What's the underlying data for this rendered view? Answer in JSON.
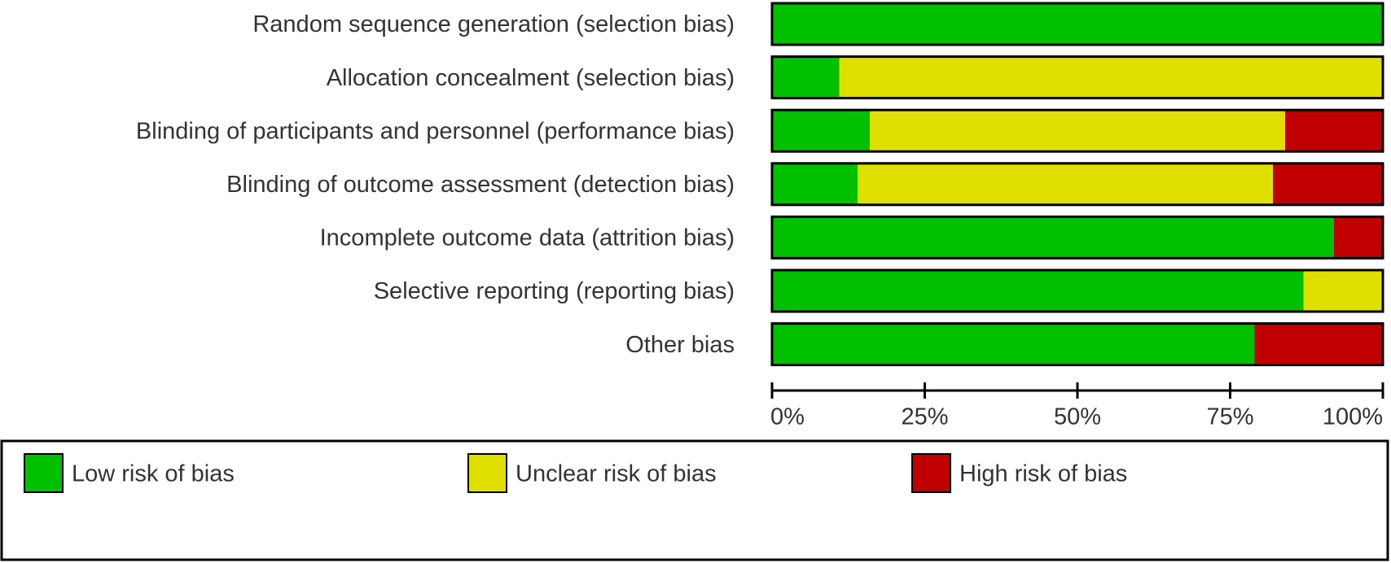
{
  "chart_data": {
    "type": "stacked-bar-horizontal",
    "categories": [
      "Random sequence generation (selection bias)",
      "Allocation concealment (selection bias)",
      "Blinding of participants and personnel (performance bias)",
      "Blinding of outcome assessment (detection bias)",
      "Incomplete outcome data (attrition bias)",
      "Selective reporting (reporting bias)",
      "Other bias"
    ],
    "series": [
      {
        "name": "Low risk of bias",
        "color": "#00c000",
        "values": [
          100,
          11,
          16,
          14,
          92,
          87,
          79
        ]
      },
      {
        "name": "Unclear risk of bias",
        "color": "#e0e000",
        "values": [
          0,
          89,
          68,
          68,
          0,
          13,
          0
        ]
      },
      {
        "name": "High risk of bias",
        "color": "#c00000",
        "values": [
          0,
          0,
          16,
          18,
          8,
          0,
          21
        ]
      }
    ],
    "xlim": [
      0,
      100
    ],
    "xticks": [
      {
        "value": 0,
        "label": "0%"
      },
      {
        "value": 25,
        "label": "25%"
      },
      {
        "value": 50,
        "label": "50%"
      },
      {
        "value": 75,
        "label": "75%"
      },
      {
        "value": 100,
        "label": "100%"
      }
    ],
    "legend": "bottom"
  }
}
